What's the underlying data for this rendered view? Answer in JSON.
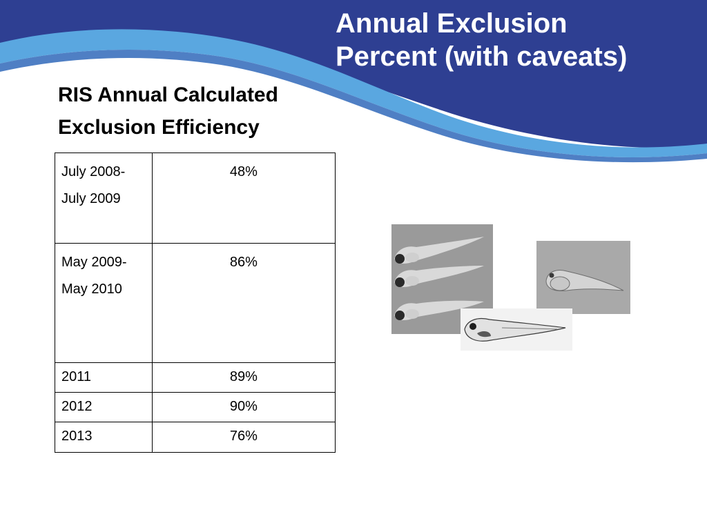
{
  "slide": {
    "title_line1": "Annual Exclusion",
    "title_line2": "Percent (with caveats)",
    "subtitle_line1": "RIS Annual Calculated",
    "subtitle_line2": "Exclusion Efficiency"
  },
  "table": {
    "rows": [
      {
        "period_line1": "July 2008-",
        "period_line2": "July 2009",
        "value": "48%"
      },
      {
        "period_line1": "May 2009-",
        "period_line2": "May 2010",
        "value": "86%"
      },
      {
        "period_line1": "2011",
        "period_line2": "",
        "value": "89%"
      },
      {
        "period_line1": "2012",
        "period_line2": "",
        "value": "90%"
      },
      {
        "period_line1": "2013",
        "period_line2": "",
        "value": "76%"
      }
    ]
  },
  "images": [
    {
      "icon": "fish-larvae-trio-photo"
    },
    {
      "icon": "fish-larva-yolk-sac-photo"
    },
    {
      "icon": "fish-larva-drawing-photo"
    }
  ],
  "colors": {
    "banner_dark": "#2e3f92",
    "banner_light": "#5aa7e0",
    "title_text": "#ffffff",
    "body_text": "#000000"
  }
}
